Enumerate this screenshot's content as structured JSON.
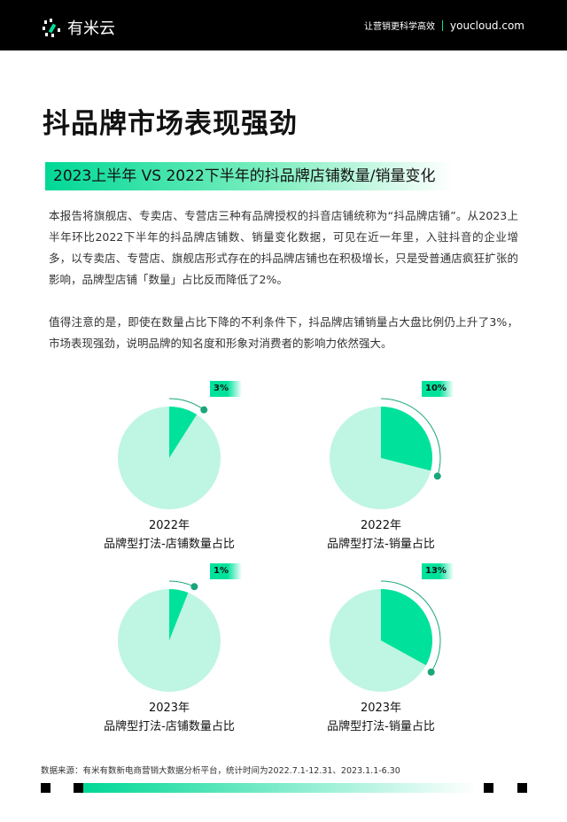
{
  "header": {
    "brand": "有米云",
    "tagline": "让营销更科学高效",
    "url": "youcloud.com"
  },
  "title": "抖品牌市场表现强劲",
  "section_title": "2023上半年 VS 2022下半年的抖品牌店铺数量/销量变化",
  "paragraphs": [
    "本报告将旗舰店、专卖店、专营店三种有品牌授权的抖音店铺统称为“抖品牌店铺”。从2023上半年环比2022下半年的抖品牌店铺数、销量变化数据，可见在近一年里，入驻抖音的企业增多，以专卖店、专营店、旗舰店形式存在的抖品牌店铺也在积极增长，只是受普通店疯狂扩张的影响，品牌型店铺「数量」占比反而降低了2%。",
    "值得注意的是，即使在数量占比下降的不利条件下，抖品牌店铺销量占大盘比例仍上升了3%，市场表现强劲，说明品牌的知名度和形象对消费者的影响力依然强大。"
  ],
  "colors": {
    "accent": "#00e29b",
    "pie_bg": "#bff5e3",
    "arc": "#1aa57d"
  },
  "chart_data": [
    {
      "type": "pie",
      "year": "2022年",
      "subtitle": "品牌型打法-店铺数量占比",
      "label": "3%",
      "shown_fraction": 0.09
    },
    {
      "type": "pie",
      "year": "2022年",
      "subtitle": "品牌型打法-销量占比",
      "label": "10%",
      "shown_fraction": 0.29
    },
    {
      "type": "pie",
      "year": "2023年",
      "subtitle": "品牌型打法-店铺数量占比",
      "label": "1%",
      "shown_fraction": 0.06
    },
    {
      "type": "pie",
      "year": "2023年",
      "subtitle": "品牌型打法-销量占比",
      "label": "13%",
      "shown_fraction": 0.33
    }
  ],
  "footer": {
    "source": "数据来源：有米有数新电商营销大数据分析平台，统计时间为2022.7.1-12.31、2023.1.1-6.30"
  }
}
